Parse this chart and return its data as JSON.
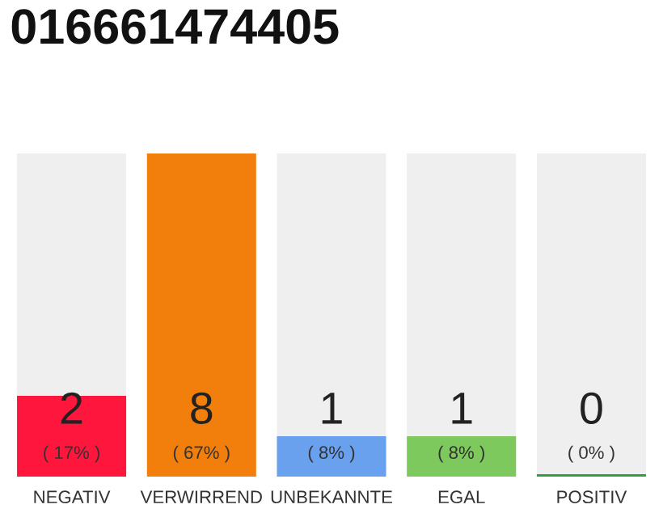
{
  "chart_data": {
    "type": "bar",
    "title": "016661474405",
    "categories": [
      "NEGATIV",
      "VERWIRREND",
      "UNBEKANNTE",
      "EGAL",
      "POSITIV"
    ],
    "values": [
      2,
      8,
      1,
      1,
      0
    ],
    "colors": [
      "#ff163c",
      "#f27e0b",
      "#6aa1ee",
      "#7dc95d",
      "#2ea043"
    ],
    "value_labels": [
      "2\n( 17% )",
      "8\n( 67% )",
      "1\n( 8% )",
      "1\n( 8% )",
      "0\n( 0% )"
    ],
    "grid": false,
    "legend": false
  }
}
